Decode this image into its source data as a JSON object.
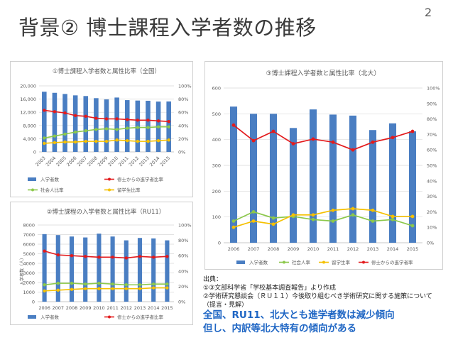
{
  "slide": {
    "title": "背景② 博士課程入学者数の推移",
    "page_number": "2"
  },
  "colors": {
    "bar": "#4a7ec2",
    "line_shushi": "#e31a1c",
    "line_shakai": "#8cc84b",
    "line_ryugaku": "#f5c000",
    "grid": "#d9d9d9",
    "axis_text": "#595959"
  },
  "legend_labels": {
    "entrants": "入学者数",
    "from_master": "修士からの進学者比率",
    "working_adult": "社会人比率",
    "international": "留学生比率"
  },
  "chart_data": [
    {
      "id": "zenkoku",
      "type": "bar",
      "title": "①博士課程入学者数と属性比率（全国）",
      "categories": [
        "2003",
        "2004",
        "2005",
        "2006",
        "2007",
        "2008",
        "2009",
        "2010",
        "2011",
        "2012",
        "2013",
        "2014",
        "2015"
      ],
      "ylim": [
        0,
        20000
      ],
      "yticks": [
        "0",
        "4,000",
        "8,000",
        "12,000",
        "16,000",
        "20,000"
      ],
      "y2lim": [
        0,
        100
      ],
      "y2ticks": [
        "0%",
        "20%",
        "40%",
        "60%",
        "80%",
        "100%"
      ],
      "series": [
        {
          "name": "入学者数",
          "kind": "bar",
          "axis": "left",
          "values": [
            18232,
            17900,
            17553,
            17131,
            16926,
            16281,
            15902,
            16471,
            15685,
            15557,
            15491,
            15248,
            15283
          ]
        },
        {
          "name": "修士からの進学者比率",
          "kind": "line",
          "axis": "right",
          "values": [
            63,
            61,
            59,
            55,
            54,
            51,
            50,
            50,
            49,
            48,
            48,
            47,
            46
          ]
        },
        {
          "name": "社会人比率",
          "kind": "line",
          "axis": "right",
          "values": [
            21,
            24,
            27,
            30,
            32,
            34,
            35,
            34,
            36,
            37,
            37,
            38,
            38
          ]
        },
        {
          "name": "留学生比率",
          "kind": "line",
          "axis": "right",
          "values": [
            13,
            14,
            15,
            15,
            16,
            16,
            16,
            18,
            17,
            16,
            16,
            17,
            18
          ]
        }
      ],
      "legend": [
        "入学者数",
        "修士からの進学者比率",
        "社会人比率",
        "留学生比率"
      ]
    },
    {
      "id": "ru11",
      "type": "bar",
      "title": "②博士課程の入学者数と属性比率（RU11）",
      "categories": [
        "2006",
        "2007",
        "2008",
        "2009",
        "2010",
        "2011",
        "2012",
        "2013",
        "2014",
        "2015"
      ],
      "ylim": [
        0,
        8000
      ],
      "yticks": [
        "0",
        "1000",
        "2000",
        "3000",
        "4000",
        "5000",
        "6000",
        "7000",
        "8000"
      ],
      "ylabel": "入学者数（人）",
      "y2lim": [
        0,
        100
      ],
      "y2ticks": [
        "0%",
        "20%",
        "40%",
        "60%",
        "80%",
        "100%"
      ],
      "series": [
        {
          "name": "入学者数",
          "kind": "bar",
          "axis": "left",
          "values": [
            7050,
            6950,
            6800,
            6700,
            7100,
            6800,
            6400,
            6650,
            6600,
            6400
          ]
        },
        {
          "name": "修士からの進学者比率",
          "kind": "line",
          "axis": "right",
          "values": [
            66,
            61,
            60,
            59,
            58,
            58,
            57,
            59,
            58,
            59
          ]
        },
        {
          "name": "社会人比率",
          "kind": "line",
          "axis": "right",
          "values": [
            22,
            24,
            24,
            23,
            24,
            23,
            22,
            22,
            23,
            23
          ]
        },
        {
          "name": "留学生比率",
          "kind": "line",
          "axis": "right",
          "values": [
            14,
            15,
            16,
            17,
            17,
            17,
            17,
            17,
            18,
            18
          ]
        }
      ],
      "legend": [
        "入学者数",
        "修士からの進学者比率",
        "社会人比率",
        "留学生比率"
      ]
    },
    {
      "id": "hokudai",
      "type": "bar",
      "title": "③博士課程入学者数と属性比率（北大）",
      "categories": [
        "2006",
        "2007",
        "2008",
        "2009",
        "2010",
        "2011",
        "2012",
        "2013",
        "2014",
        "2015"
      ],
      "ylim": [
        0,
        600
      ],
      "yticks": [
        "0",
        "100",
        "200",
        "300",
        "400",
        "500",
        "600"
      ],
      "y2lim": [
        0,
        100
      ],
      "y2ticks": [
        "0%",
        "10%",
        "20%",
        "30%",
        "40%",
        "50%",
        "60%",
        "70%",
        "80%",
        "90%",
        "100%"
      ],
      "series": [
        {
          "name": "入学者数",
          "kind": "bar",
          "axis": "left",
          "values": [
            528,
            500,
            500,
            445,
            517,
            497,
            493,
            437,
            463,
            432
          ]
        },
        {
          "name": "社会人比率",
          "kind": "line",
          "axis": "right",
          "values": [
            14,
            20,
            16,
            17,
            15,
            14,
            18,
            14,
            15,
            11
          ]
        },
        {
          "name": "留学生比率",
          "kind": "line",
          "axis": "right",
          "values": [
            10,
            14,
            12,
            18,
            18,
            21,
            22,
            21,
            17,
            17
          ]
        },
        {
          "name": "修士からの進学者比率",
          "kind": "line",
          "axis": "right",
          "values": [
            76,
            66,
            72,
            64,
            67,
            65,
            60,
            65,
            68,
            72
          ]
        }
      ],
      "legend": [
        "入学者数",
        "社会人率",
        "留学生率",
        "修士からの進学者率"
      ]
    }
  ],
  "source": {
    "heading": "出典：",
    "line1": "①③文部科学省「学校基本調査報告」より作成",
    "line2": "②学術研究懇談会（ＲＵ１１）今後取り組むべき学術研究に関する施策について（提言・見解）"
  },
  "conclusion": {
    "line1": "全国、RU11、北大とも進学者数は減少傾向",
    "line2": "但し、内訳等北大特有の傾向がある"
  }
}
